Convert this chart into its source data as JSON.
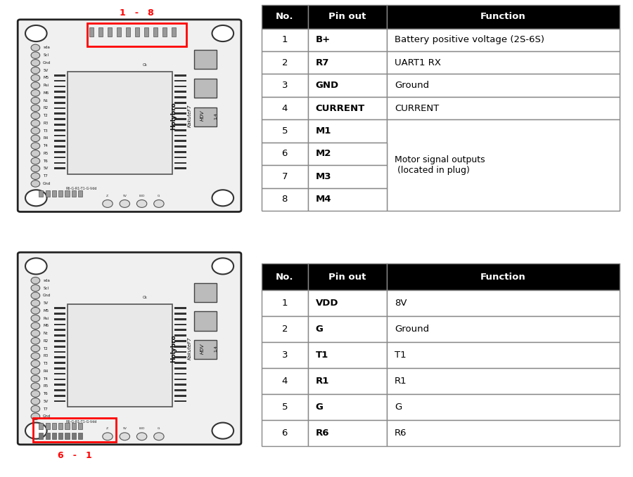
{
  "table1": {
    "headers": [
      "No.",
      "Pin out",
      "Function"
    ],
    "rows": [
      [
        "1",
        "B+",
        "Battery positive voltage (2S-6S)"
      ],
      [
        "2",
        "R7",
        "UART1 RX"
      ],
      [
        "3",
        "GND",
        "Ground"
      ],
      [
        "4",
        "CURRENT",
        "CURRENT"
      ],
      [
        "5",
        "M1",
        ""
      ],
      [
        "6",
        "M2",
        ""
      ],
      [
        "7",
        "M3",
        ""
      ],
      [
        "8",
        "M4",
        ""
      ]
    ],
    "merged_rows_function": [
      4,
      5,
      6,
      7
    ],
    "merged_text": "Motor signal outputs\n (located in plug)",
    "label_top": "1   -   8"
  },
  "table2": {
    "headers": [
      "No.",
      "Pin out",
      "Function"
    ],
    "rows": [
      [
        "1",
        "VDD",
        "8V"
      ],
      [
        "2",
        "G",
        "Ground"
      ],
      [
        "3",
        "T1",
        "T1"
      ],
      [
        "4",
        "R1",
        "R1"
      ],
      [
        "5",
        "G",
        "G"
      ],
      [
        "6",
        "R6",
        "R6"
      ]
    ],
    "label_bottom": "6   -   1"
  },
  "header_bg": "#000000",
  "header_fg": "#ffffff",
  "row_bg": "#ffffff",
  "row_fg": "#000000",
  "border_color": "#888888",
  "background": "#ffffff"
}
